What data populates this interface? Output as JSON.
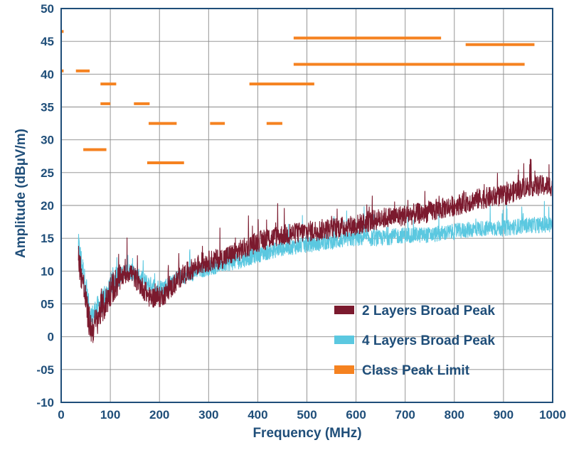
{
  "chart_data": {
    "type": "line",
    "title": "",
    "xlabel": "Frequency (MHz)",
    "ylabel": "Amplitude (dBµV/m)",
    "xlim": [
      0,
      1000
    ],
    "ylim": [
      -10,
      50
    ],
    "x_ticks": [
      "0",
      "100",
      "200",
      "300",
      "400",
      "500",
      "600",
      "700",
      "800",
      "900",
      "1000"
    ],
    "y_ticks": [
      "-10",
      "-05",
      "0",
      "05",
      "10",
      "15",
      "20",
      "25",
      "30",
      "35",
      "40",
      "45",
      "50"
    ],
    "grid": true,
    "legend_position": "bottom-right",
    "colors": {
      "axis_text": "#1f4e79",
      "grid": "#8a8a8a",
      "frame": "#1f4e79"
    },
    "series": [
      {
        "name": "2 Layers Broad Peak",
        "color": "#7b1a2e",
        "x": [
          35,
          45,
          55,
          62,
          70,
          80,
          90,
          100,
          120,
          140,
          160,
          180,
          200,
          220,
          240,
          260,
          280,
          300,
          330,
          360,
          400,
          450,
          500,
          550,
          600,
          650,
          700,
          750,
          800,
          850,
          900,
          950,
          1000
        ],
        "y": [
          12,
          8,
          3,
          1,
          2,
          4,
          5,
          7,
          9,
          10,
          8,
          6,
          6,
          7,
          9,
          10,
          11,
          11.5,
          12,
          13,
          14.5,
          15.5,
          16,
          16.5,
          17,
          18,
          18.5,
          19,
          20,
          21,
          21.5,
          23,
          23
        ]
      },
      {
        "name": "4 Layers Broad Peak",
        "color": "#5bc8e0",
        "x": [
          35,
          45,
          55,
          62,
          70,
          80,
          90,
          100,
          120,
          140,
          160,
          180,
          200,
          220,
          240,
          260,
          280,
          300,
          330,
          360,
          400,
          450,
          500,
          550,
          600,
          650,
          700,
          750,
          800,
          850,
          900,
          950,
          1000
        ],
        "y": [
          14,
          10,
          5,
          3,
          4,
          5,
          6,
          8,
          9.5,
          10,
          9,
          8,
          7.5,
          8,
          9,
          9.5,
          10,
          10.5,
          11,
          11.5,
          12.5,
          13.5,
          14,
          14.5,
          15,
          15,
          15.5,
          15.5,
          16,
          16.5,
          16.5,
          17,
          17
        ]
      }
    ],
    "limit_series": {
      "name": "Class Peak Limit",
      "color": "#f58220",
      "segments": [
        {
          "x": [
            0,
            5
          ],
          "y": 46.5
        },
        {
          "x": [
            0,
            5
          ],
          "y": 40.5
        },
        {
          "x": [
            30,
            58
          ],
          "y": 40.5
        },
        {
          "x": [
            45,
            92
          ],
          "y": 28.5
        },
        {
          "x": [
            80,
            100
          ],
          "y": 35.5
        },
        {
          "x": [
            80,
            112
          ],
          "y": 38.5
        },
        {
          "x": [
            148,
            180
          ],
          "y": 35.5
        },
        {
          "x": [
            178,
            235
          ],
          "y": 32.5
        },
        {
          "x": [
            175,
            250
          ],
          "y": 26.5
        },
        {
          "x": [
            303,
            333
          ],
          "y": 32.5
        },
        {
          "x": [
            383,
            515
          ],
          "y": 38.5
        },
        {
          "x": [
            418,
            450
          ],
          "y": 32.5
        },
        {
          "x": [
            473,
            773
          ],
          "y": 45.5
        },
        {
          "x": [
            473,
            943
          ],
          "y": 41.5
        },
        {
          "x": [
            823,
            963
          ],
          "y": 44.5
        }
      ]
    }
  }
}
